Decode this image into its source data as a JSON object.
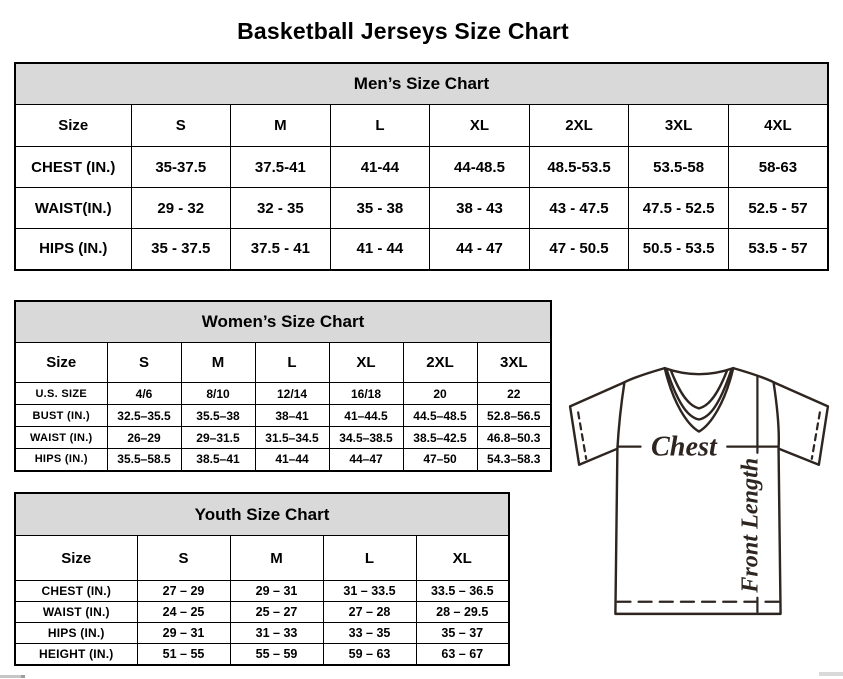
{
  "page": {
    "title": "Basketball Jerseys Size Chart"
  },
  "tables": {
    "men": {
      "title": "Men’s Size Chart",
      "columns": [
        "Size",
        "S",
        "M",
        "L",
        "XL",
        "2XL",
        "3XL",
        "4XL"
      ],
      "rows": [
        {
          "label": "CHEST (IN.)",
          "values": [
            "35-37.5",
            "37.5-41",
            "41-44",
            "44-48.5",
            "48.5-53.5",
            "53.5-58",
            "58-63"
          ]
        },
        {
          "label": "WAIST(IN.)",
          "values": [
            "29 - 32",
            "32 - 35",
            "35 - 38",
            "38 - 43",
            "43 - 47.5",
            "47.5 - 52.5",
            "52.5 - 57"
          ]
        },
        {
          "label": "HIPS (IN.)",
          "values": [
            "35 - 37.5",
            "37.5 - 41",
            "41 - 44",
            "44 - 47",
            "47 - 50.5",
            "50.5 - 53.5",
            "53.5 - 57"
          ]
        }
      ]
    },
    "women": {
      "title": "Women’s Size Chart",
      "columns": [
        "Size",
        "S",
        "M",
        "L",
        "XL",
        "2XL",
        "3XL"
      ],
      "rows": [
        {
          "label": "U.S. SIZE",
          "values": [
            "4/6",
            "8/10",
            "12/14",
            "16/18",
            "20",
            "22"
          ]
        },
        {
          "label": "BUST (IN.)",
          "values": [
            "32.5–35.5",
            "35.5–38",
            "38–41",
            "41–44.5",
            "44.5–48.5",
            "52.8–56.5"
          ]
        },
        {
          "label": "WAIST (IN.)",
          "values": [
            "26–29",
            "29–31.5",
            "31.5–34.5",
            "34.5–38.5",
            "38.5–42.5",
            "46.8–50.3"
          ]
        },
        {
          "label": "HIPS (IN.)",
          "values": [
            "35.5–58.5",
            "38.5–41",
            "41–44",
            "44–47",
            "47–50",
            "54.3–58.3"
          ]
        }
      ]
    },
    "youth": {
      "title": "Youth Size Chart",
      "columns": [
        "Size",
        "S",
        "M",
        "L",
        "XL"
      ],
      "rows": [
        {
          "label": "CHEST (IN.)",
          "values": [
            "27 – 29",
            "29 – 31",
            "31 – 33.5",
            "33.5 – 36.5"
          ]
        },
        {
          "label": "WAIST (IN.)",
          "values": [
            "24 – 25",
            "25 – 27",
            "27 – 28",
            "28 – 29.5"
          ]
        },
        {
          "label": "HIPS (IN.)",
          "values": [
            "29 – 31",
            "31 – 33",
            "33 – 35",
            "35 – 37"
          ]
        },
        {
          "label": "HEIGHT (IN.)",
          "values": [
            "51 – 55",
            "55 – 59",
            "59 – 63",
            "63 – 67"
          ]
        }
      ]
    }
  },
  "diagram": {
    "chest_label": "Chest",
    "front_length_label": "Front Length"
  },
  "colors": {
    "header_bg": "#d9d9d9",
    "table_border": "#000000",
    "jersey_stroke": "#2e2521"
  }
}
